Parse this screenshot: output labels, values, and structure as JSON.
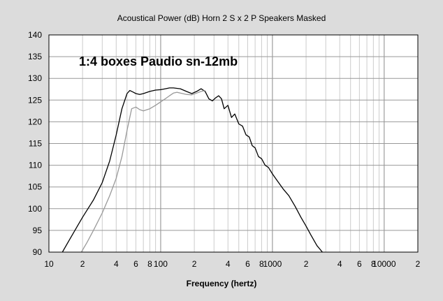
{
  "chart_data": {
    "type": "line",
    "title": "Acoustical Power (dB)   Horn    2 S x 2 P Speakers    Masked",
    "annotation": "1:4 boxes Paudio sn-12mb",
    "xlabel": "Frequency (hertz)",
    "ylabel": "",
    "x_scale": "log",
    "xlim": [
      10,
      20000
    ],
    "ylim": [
      90,
      140
    ],
    "y_ticks": [
      90,
      95,
      100,
      105,
      110,
      115,
      120,
      125,
      130,
      135,
      140
    ],
    "x_ticks": [
      {
        "value": 10,
        "label": "10"
      },
      {
        "value": 20,
        "label": "2"
      },
      {
        "value": 40,
        "label": "4"
      },
      {
        "value": 60,
        "label": "6"
      },
      {
        "value": 80,
        "label": "8"
      },
      {
        "value": 100,
        "label": "100"
      },
      {
        "value": 200,
        "label": "2"
      },
      {
        "value": 400,
        "label": "4"
      },
      {
        "value": 600,
        "label": "6"
      },
      {
        "value": 800,
        "label": "8"
      },
      {
        "value": 1000,
        "label": "1000"
      },
      {
        "value": 2000,
        "label": "2"
      },
      {
        "value": 4000,
        "label": "4"
      },
      {
        "value": 6000,
        "label": "6"
      },
      {
        "value": 8000,
        "label": "8"
      },
      {
        "value": 10000,
        "label": "10000"
      },
      {
        "value": 20000,
        "label": "2"
      }
    ],
    "grid": true,
    "series": [
      {
        "color": "#000000",
        "x": [
          13.2,
          15,
          18,
          20,
          25,
          30,
          35,
          40,
          45,
          50,
          53,
          57,
          60,
          65,
          70,
          80,
          90,
          100,
          110,
          120,
          130,
          150,
          170,
          190,
          210,
          230,
          250,
          270,
          290,
          310,
          330,
          350,
          370,
          400,
          430,
          460,
          500,
          540,
          580,
          620,
          660,
          700,
          750,
          800,
          860,
          920,
          1000,
          1100,
          1250,
          1400,
          1600,
          1800,
          2000,
          2200,
          2500,
          2800
        ],
        "y": [
          90,
          92.5,
          96,
          98,
          102,
          106,
          111,
          117,
          123,
          126.5,
          127.2,
          126.8,
          126.5,
          126.3,
          126.5,
          127,
          127.3,
          127.4,
          127.6,
          127.8,
          127.8,
          127.6,
          127,
          126.5,
          127,
          127.6,
          127,
          125.3,
          124.8,
          125.5,
          126,
          125.3,
          123,
          123.8,
          121,
          121.8,
          119.5,
          119,
          117,
          116.5,
          114.5,
          114,
          112,
          111.5,
          110,
          109.5,
          108,
          106.5,
          104.5,
          103,
          100.5,
          98,
          96,
          94,
          91.5,
          90
        ]
      },
      {
        "color": "#999999",
        "x": [
          19.5,
          22,
          25,
          30,
          35,
          40,
          45,
          50,
          55,
          60,
          65,
          70,
          80,
          90,
          100,
          110,
          120,
          130,
          140,
          150,
          170,
          190,
          210,
          230,
          250
        ],
        "y": [
          90,
          92.3,
          95,
          99,
          103,
          107,
          112,
          118,
          123,
          123.4,
          122.8,
          122.5,
          123,
          123.8,
          124.6,
          125.3,
          126,
          126.6,
          126.8,
          126.6,
          126.3,
          126.2,
          126.6,
          127,
          127.2
        ]
      }
    ]
  }
}
